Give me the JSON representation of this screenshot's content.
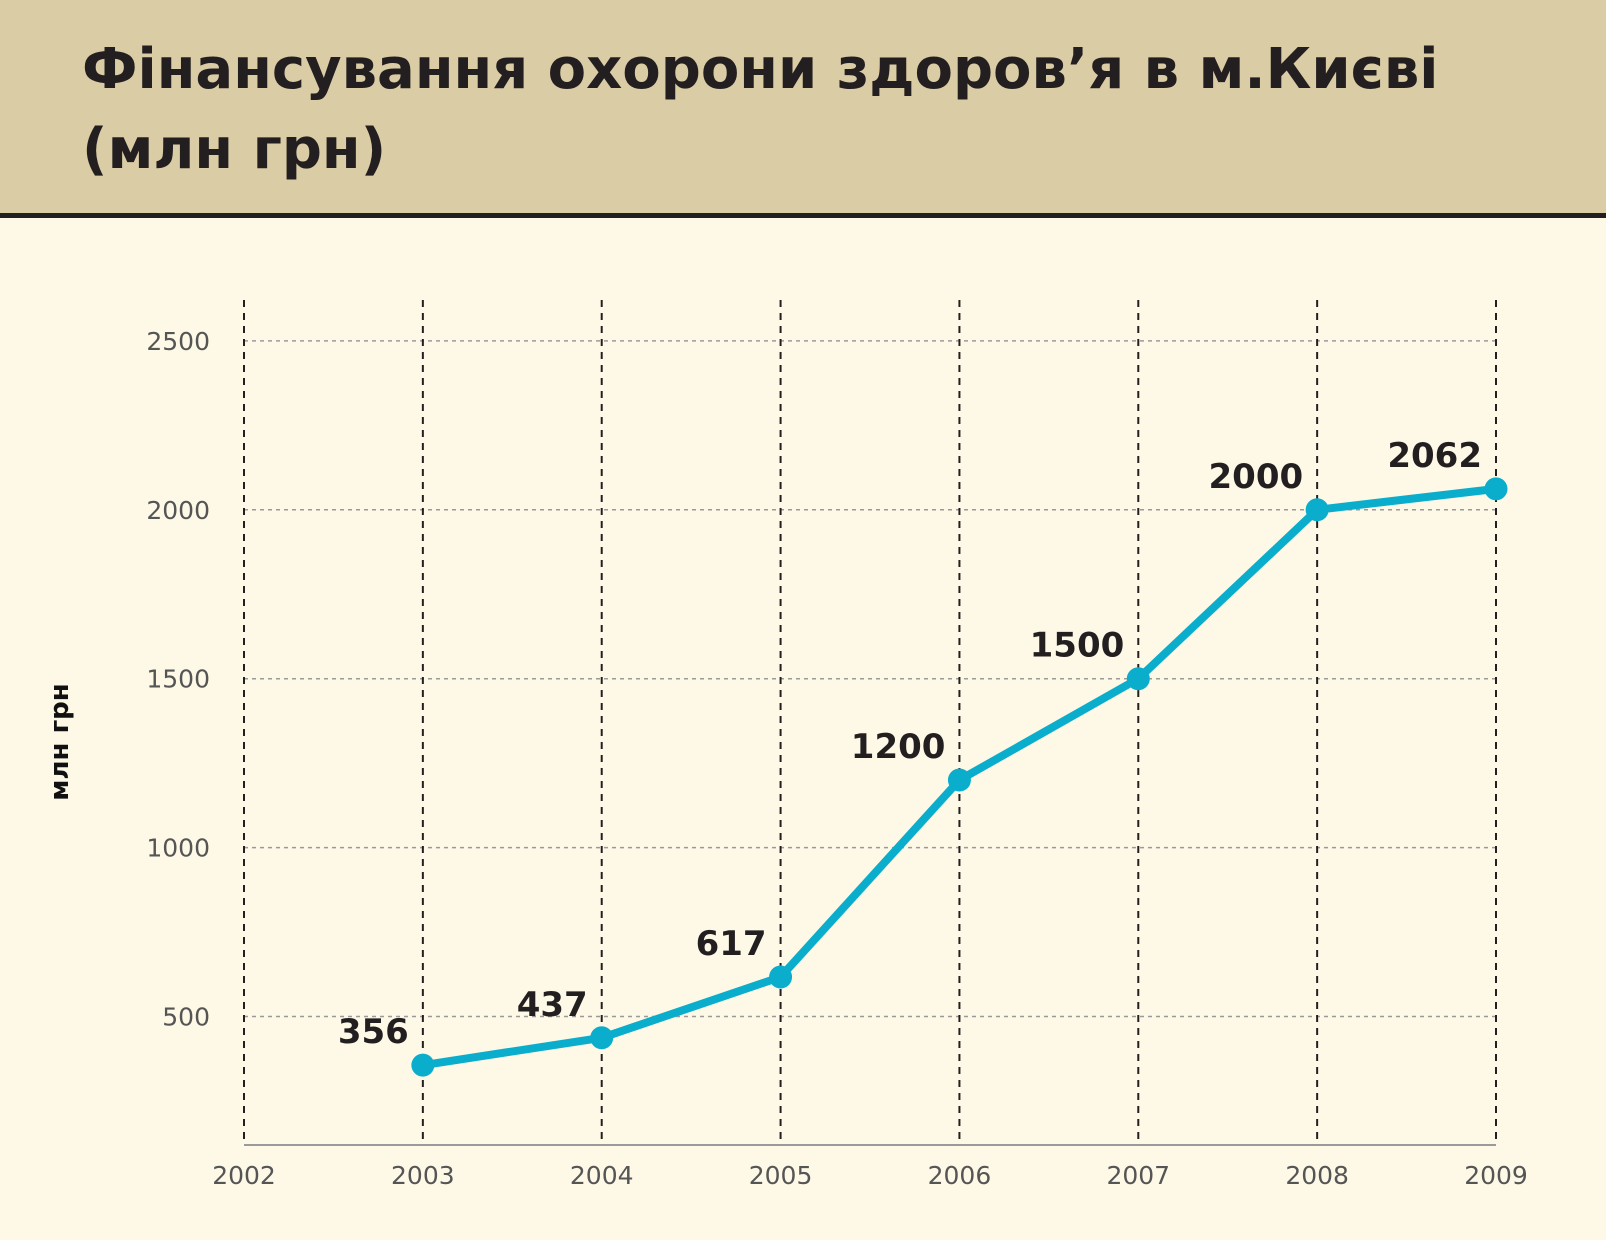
{
  "title": "Фінансування охорони здоров’я в м.Києві (млн грн)",
  "colors": {
    "header_bg": "#dacca5",
    "page_bg": "#fdf9e6",
    "line": "#0aaecc",
    "text": "#231f20"
  },
  "chart_data": {
    "type": "line",
    "title": "Фінансування охорони здоров’я в м.Києві (млн грн)",
    "xlabel": "",
    "ylabel": "млн грн",
    "x_ticks": [
      "2002",
      "2003",
      "2004",
      "2005",
      "2006",
      "2007",
      "2008",
      "2009"
    ],
    "y_ticks": [
      500,
      1000,
      1500,
      2000,
      2500
    ],
    "ylim": [
      120,
      2620
    ],
    "xlim": [
      2002,
      2009
    ],
    "grid": true,
    "series": [
      {
        "x": [
          2003,
          2004,
          2005,
          2006,
          2007,
          2008,
          2009
        ],
        "values": [
          356,
          437,
          617,
          1200,
          1500,
          2000,
          2062
        ],
        "labels": [
          "356",
          "437",
          "617",
          "1200",
          "1500",
          "2000",
          "2062"
        ],
        "color": "#0aaecc"
      }
    ]
  }
}
